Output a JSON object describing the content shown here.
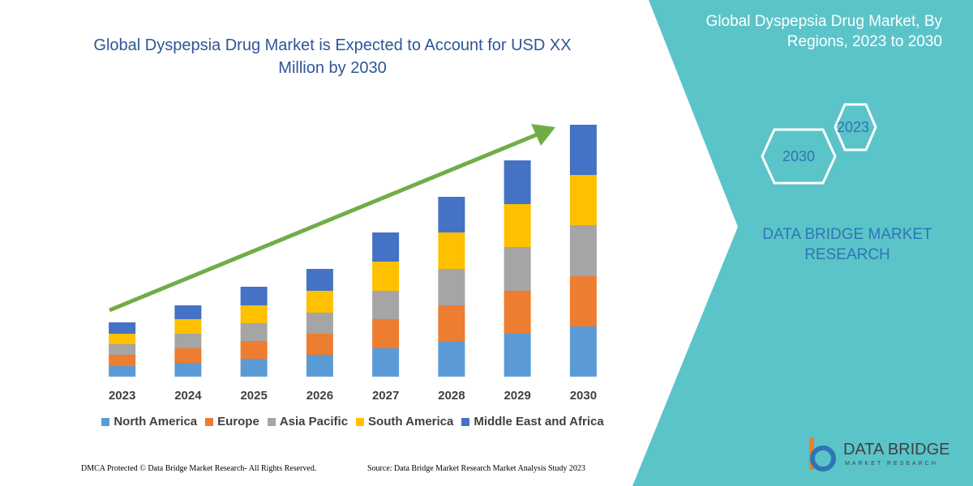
{
  "chart_data": {
    "type": "stacked-bar",
    "title": "Global Dyspepsia Drug Market is Expected to Account for USD XX Million by 2030",
    "categories": [
      "2023",
      "2024",
      "2025",
      "2026",
      "2027",
      "2028",
      "2029",
      "2030"
    ],
    "series": [
      {
        "name": "North America",
        "color": "#5b9bd5",
        "values": [
          13,
          17,
          22,
          27,
          35,
          44,
          53,
          62
        ]
      },
      {
        "name": "Europe",
        "color": "#ed7d31",
        "values": [
          14,
          18,
          22,
          26,
          36,
          44,
          53,
          62
        ]
      },
      {
        "name": "Asia Pacific",
        "color": "#a5a5a5",
        "values": [
          13,
          18,
          22,
          26,
          35,
          45,
          54,
          63
        ]
      },
      {
        "name": "South America",
        "color": "#ffc000",
        "values": [
          13,
          18,
          22,
          27,
          36,
          45,
          53,
          62
        ]
      },
      {
        "name": "Middle East and Africa",
        "color": "#4472c4",
        "values": [
          14,
          17,
          23,
          27,
          36,
          44,
          54,
          62
        ]
      }
    ],
    "ylim": [
      0,
      320
    ]
  },
  "panel": {
    "title": "Global Dyspepsia Drug Market, By Regions, 2023 to 2030",
    "hexagons": [
      "2023",
      "2030"
    ],
    "brand": "DATA BRIDGE MARKET RESEARCH"
  },
  "footer": {
    "left": "DMCA Protected © Data Bridge Market Research-  All Rights Reserved.",
    "right": "Source: Data Bridge Market Research  Market Analysis Study 2023"
  },
  "logo": {
    "name": "DATA BRIDGE",
    "tagline": "MARKET RESEARCH"
  }
}
